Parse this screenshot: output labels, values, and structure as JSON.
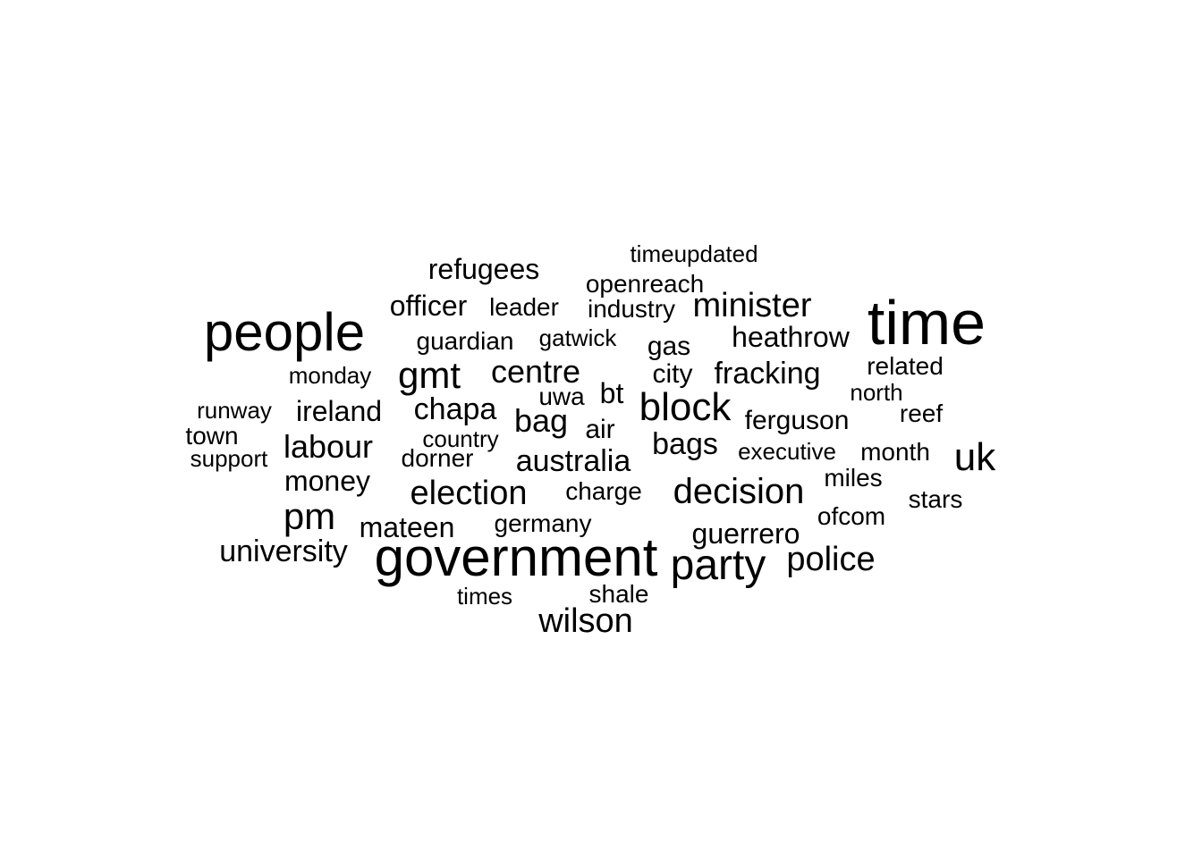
{
  "word_cloud": {
    "text_color": "#000000",
    "background_color": "#ffffff",
    "words": [
      {
        "text": "time",
        "weight": 70
      },
      {
        "text": "government",
        "weight": 60
      },
      {
        "text": "people",
        "weight": 60
      },
      {
        "text": "party",
        "weight": 48
      },
      {
        "text": "block",
        "weight": 44
      },
      {
        "text": "uk",
        "weight": 44
      },
      {
        "text": "gmt",
        "weight": 42
      },
      {
        "text": "pm",
        "weight": 42
      },
      {
        "text": "decision",
        "weight": 40
      },
      {
        "text": "police",
        "weight": 38
      },
      {
        "text": "election",
        "weight": 38
      },
      {
        "text": "minister",
        "weight": 38
      },
      {
        "text": "wilson",
        "weight": 38
      },
      {
        "text": "labour",
        "weight": 36
      },
      {
        "text": "centre",
        "weight": 36
      },
      {
        "text": "bag",
        "weight": 36
      },
      {
        "text": "australia",
        "weight": 34
      },
      {
        "text": "fracking",
        "weight": 34
      },
      {
        "text": "bags",
        "weight": 34
      },
      {
        "text": "university",
        "weight": 34
      },
      {
        "text": "chapa",
        "weight": 34
      },
      {
        "text": "heathrow",
        "weight": 32
      },
      {
        "text": "refugees",
        "weight": 32
      },
      {
        "text": "mateen",
        "weight": 32
      },
      {
        "text": "money",
        "weight": 32
      },
      {
        "text": "ireland",
        "weight": 32
      },
      {
        "text": "guerrero",
        "weight": 32
      },
      {
        "text": "bt",
        "weight": 32
      },
      {
        "text": "officer",
        "weight": 32
      },
      {
        "text": "air",
        "weight": 30
      },
      {
        "text": "gas",
        "weight": 30
      },
      {
        "text": "city",
        "weight": 30
      },
      {
        "text": "ferguson",
        "weight": 30
      },
      {
        "text": "leader",
        "weight": 28
      },
      {
        "text": "guardian",
        "weight": 28
      },
      {
        "text": "openreach",
        "weight": 28
      },
      {
        "text": "industry",
        "weight": 28
      },
      {
        "text": "uwa",
        "weight": 28
      },
      {
        "text": "charge",
        "weight": 28
      },
      {
        "text": "germany",
        "weight": 28
      },
      {
        "text": "reef",
        "weight": 28
      },
      {
        "text": "related",
        "weight": 28
      },
      {
        "text": "miles",
        "weight": 28
      },
      {
        "text": "ofcom",
        "weight": 28
      },
      {
        "text": "month",
        "weight": 28
      },
      {
        "text": "stars",
        "weight": 28
      },
      {
        "text": "shale",
        "weight": 28
      },
      {
        "text": "town",
        "weight": 28
      },
      {
        "text": "dorner",
        "weight": 28
      },
      {
        "text": "gatwick",
        "weight": 26
      },
      {
        "text": "times",
        "weight": 26
      },
      {
        "text": "runway",
        "weight": 26
      },
      {
        "text": "monday",
        "weight": 26
      },
      {
        "text": "north",
        "weight": 26
      },
      {
        "text": "timeupdated",
        "weight": 26
      },
      {
        "text": "executive",
        "weight": 26
      },
      {
        "text": "country",
        "weight": 26
      },
      {
        "text": "support",
        "weight": 26
      }
    ]
  }
}
